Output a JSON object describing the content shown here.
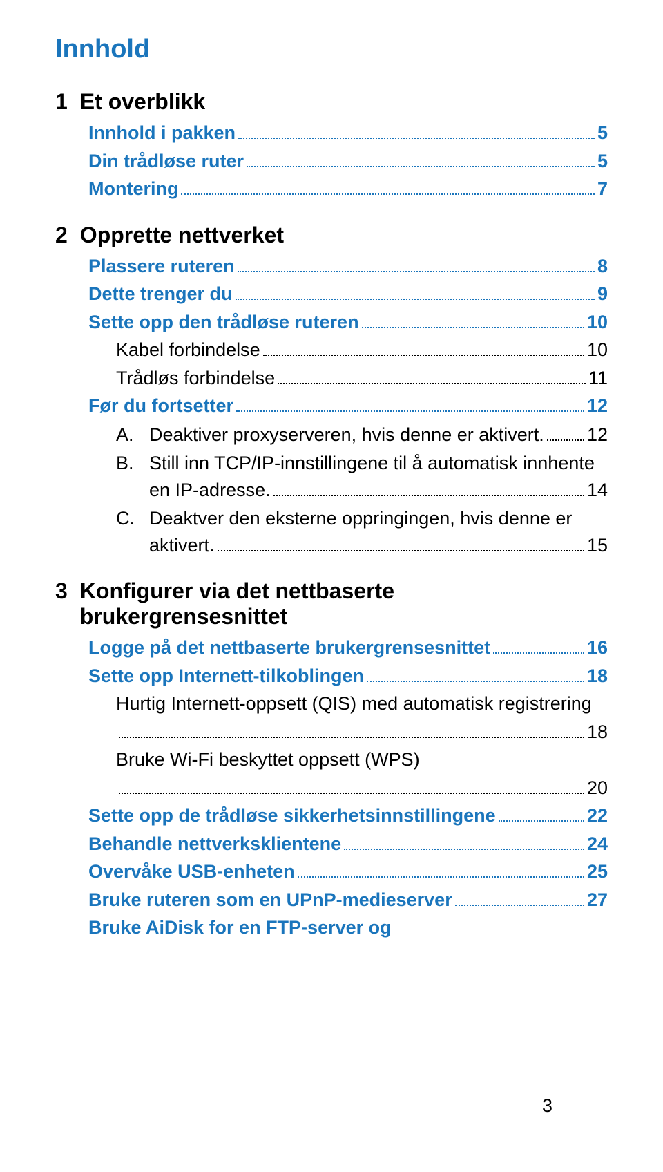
{
  "title": "Innhold",
  "page_number": "3",
  "colors": {
    "heading": "#1a75bc",
    "link": "#1a75bc",
    "text": "#000000",
    "background": "#ffffff"
  },
  "typography": {
    "title_fontsize": 38,
    "chapter_fontsize": 32,
    "entry_fontsize": 27,
    "font_family": "Arial"
  },
  "chapters": [
    {
      "num": "1",
      "title": "Et overblikk",
      "entries": [
        {
          "level": 1,
          "label": "Innhold i pakken",
          "page": "5"
        },
        {
          "level": 1,
          "label": "Din trådløse ruter",
          "page": "5"
        },
        {
          "level": 1,
          "label": "Montering",
          "page": "7"
        }
      ]
    },
    {
      "num": "2",
      "title": "Opprette nettverket",
      "entries": [
        {
          "level": 1,
          "label": "Plassere ruteren",
          "page": "8"
        },
        {
          "level": 1,
          "label": "Dette trenger du",
          "page": "9"
        },
        {
          "level": 1,
          "label": "Sette opp den trådløse ruteren",
          "page": "10"
        },
        {
          "level": 2,
          "label": "Kabel forbindelse",
          "page": "10"
        },
        {
          "level": 2,
          "label": "Trådløs forbindelse",
          "page": "11"
        },
        {
          "level": 1,
          "label": "Før du fortsetter",
          "page": "12"
        },
        {
          "level": 3,
          "letter": "A.",
          "text": "Deaktiver proxyserveren, hvis denne er aktivert.",
          "page": "12"
        },
        {
          "level": 3,
          "letter": "B.",
          "text_line1": "Still inn TCP/IP-innstillingene til å automatisk innhente",
          "text_line2": "en IP-adresse.",
          "page": "14"
        },
        {
          "level": 3,
          "letter": "C.",
          "text_line1": "Deaktver den eksterne oppringingen, hvis denne er",
          "text_line2": "aktivert.",
          "page": "15"
        }
      ]
    },
    {
      "num": "3",
      "title": "Konfigurer via det nettbaserte brukergrensesnittet",
      "entries": [
        {
          "level": 1,
          "label": "Logge på det nettbaserte brukergrensesnittet",
          "page": "16"
        },
        {
          "level": 1,
          "label": "Sette opp Internett-tilkoblingen",
          "page": "18"
        },
        {
          "level": 2,
          "label_line1": "Hurtig Internett-oppsett (QIS) med automatisk registrering",
          "page": "18",
          "wrapped": true
        },
        {
          "level": 2,
          "label_line1": "Bruke Wi-Fi beskyttet oppsett (WPS)",
          "page": "20",
          "wrapped": true
        },
        {
          "level": 1,
          "label": "Sette opp de trådløse sikkerhetsinnstillingene",
          "page": "22"
        },
        {
          "level": 1,
          "label": "Behandle nettverksklientene",
          "page": "24"
        },
        {
          "level": 1,
          "label": "Overvåke USB-enheten",
          "page": "25"
        },
        {
          "level": 1,
          "label": "Bruke ruteren som en UPnP-medieserver",
          "page": "27"
        },
        {
          "level": 1,
          "label": "Bruke AiDisk for en FTP-server og",
          "page": ""
        }
      ]
    }
  ]
}
